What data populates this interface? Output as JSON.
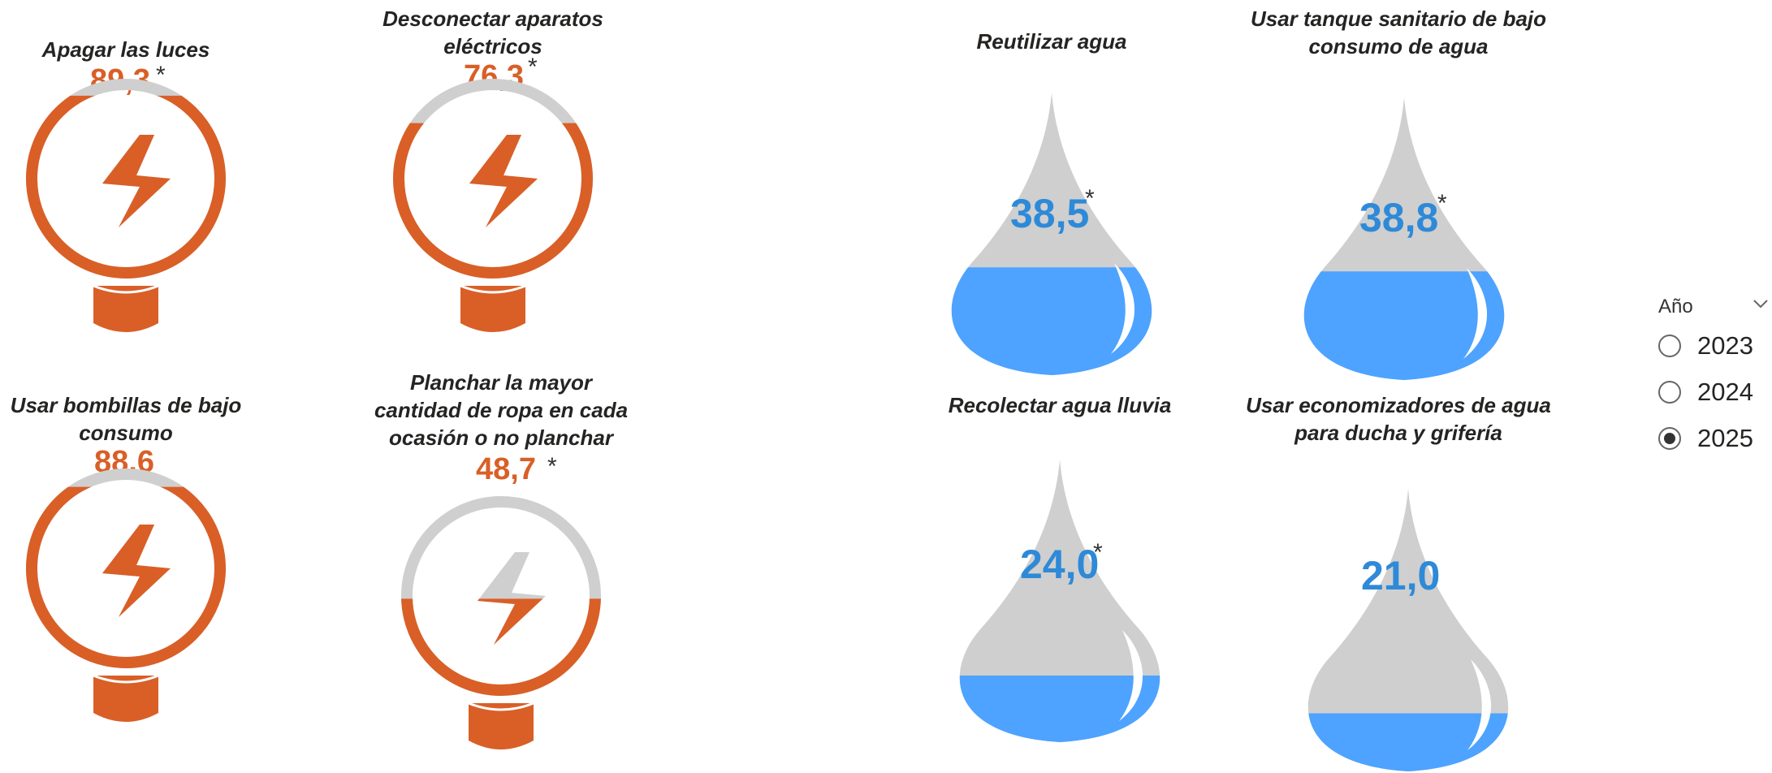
{
  "energy": [
    {
      "title": "Apagar las luces",
      "value": "89,3",
      "fill": 0.893,
      "star": "*"
    },
    {
      "title": "Desconectar aparatos eléctricos",
      "value": "76,3",
      "fill": 0.763,
      "star": "*"
    },
    {
      "title": "Usar bombillas de bajo consumo",
      "value": "88,6",
      "fill": 0.886,
      "star": ""
    },
    {
      "title": "Planchar la mayor cantidad de ropa en cada ocasión o no planchar",
      "value": "48,7",
      "fill": 0.487,
      "star": "*"
    }
  ],
  "water": [
    {
      "title": "Reutilizar agua",
      "value": "38,5",
      "fill": 0.385,
      "star": "*"
    },
    {
      "title": "Usar tanque sanitario de bajo consumo de agua",
      "value": "38,8",
      "fill": 0.388,
      "star": "*"
    },
    {
      "title": "Recolectar agua lluvia",
      "value": "24,0",
      "fill": 0.24,
      "star": "*"
    },
    {
      "title": "Usar economizadores de agua para ducha y grifería",
      "value": "21,0",
      "fill": 0.21,
      "star": ""
    }
  ],
  "slicer": {
    "title": "Año",
    "options": [
      {
        "label": "2023",
        "selected": false
      },
      {
        "label": "2024",
        "selected": false
      },
      {
        "label": "2025",
        "selected": true
      }
    ]
  },
  "colors": {
    "energy_fill": "#d95f27",
    "empty": "#cfcfcf",
    "water_fill": "#4da3ff",
    "water_value": "#2e8ad8"
  },
  "icons": {
    "energy": "lightning-bulb-icon",
    "water": "water-drop-icon",
    "slicer": "chevron-down-icon"
  }
}
